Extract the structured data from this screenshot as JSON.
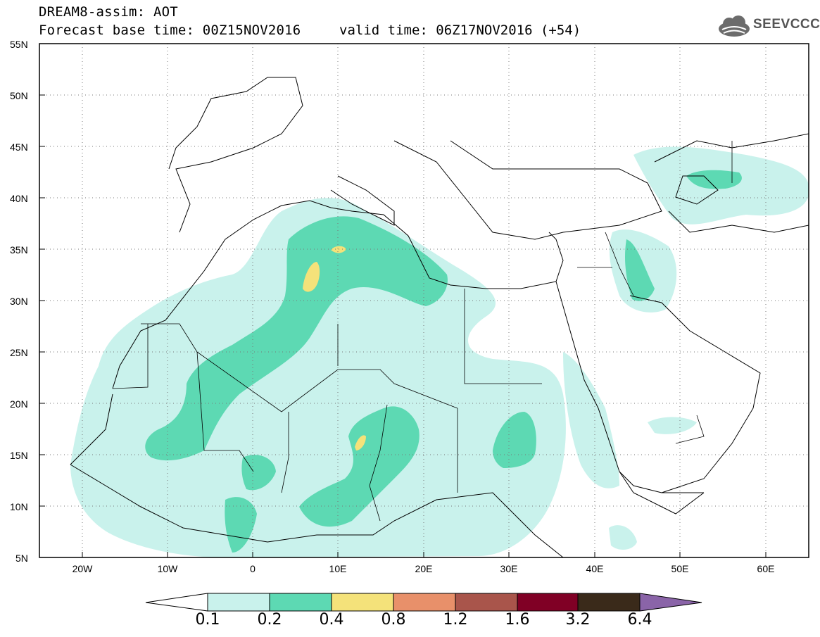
{
  "header": {
    "title": "DREAM8-assim: AOT",
    "base_time": "Forecast base time: 00Z15NOV2016",
    "valid_time": "valid time: 06Z17NOV2016 (+54)"
  },
  "logo": {
    "text": "SEEVCCC",
    "icon": "cloud-icon"
  },
  "map": {
    "lat_labels": [
      "55N",
      "50N",
      "45N",
      "40N",
      "35N",
      "30N",
      "25N",
      "20N",
      "15N",
      "10N",
      "5N"
    ],
    "lon_labels": [
      "20W",
      "10W",
      "0",
      "10E",
      "20E",
      "30E",
      "40E",
      "50E",
      "60E"
    ],
    "extent": {
      "lon_min": -25,
      "lon_max": 65,
      "lat_min": 5,
      "lat_max": 55
    }
  },
  "colorbar": {
    "labels": [
      "0.1",
      "0.2",
      "0.4",
      "0.8",
      "1.2",
      "1.6",
      "3.2",
      "6.4"
    ],
    "colors": [
      "#c9f2ec",
      "#5dd9b3",
      "#f4e27a",
      "#e8906a",
      "#a9554b",
      "#800025",
      "#3a2a1a",
      "#8a64a8"
    ]
  }
}
